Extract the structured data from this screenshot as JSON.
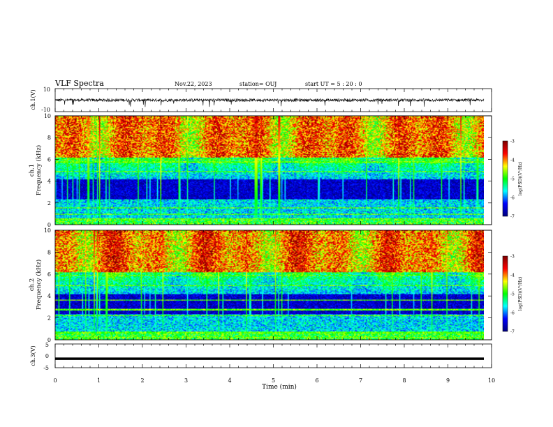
{
  "header": {
    "title": "VLF Spectra",
    "date": "Nov.22, 2023",
    "station": "station= OUJ",
    "start_ut": "start  UT =   5 : 20 : 0"
  },
  "chart_data": [
    {
      "type": "line",
      "panel": "ch1-waveform",
      "ylabel": "ch.1(V)",
      "ylim": [
        -10,
        10
      ],
      "yticks": [
        "10",
        "-10"
      ],
      "xlim": [
        0,
        10
      ],
      "series": [
        {
          "values": "noisy waveform centered near 0 V, amplitude approx 1-2 V with occasional spikes to -4 V"
        }
      ]
    },
    {
      "type": "heatmap",
      "panel": "ch1-spectrogram",
      "ylabel": "ch.1\nFrequency (kHz)",
      "ylabel_lines": [
        "ch.1",
        "Frequency (kHz)"
      ],
      "ylim": [
        0,
        10
      ],
      "yticks": [
        "0",
        "2",
        "4",
        "6",
        "8",
        "10"
      ],
      "xlim": [
        0,
        9.83
      ],
      "colorbar": {
        "label": "log(PSD)(V²/Hz)",
        "range": [
          -7,
          -3
        ],
        "ticks": [
          "-3",
          "-4",
          "-5",
          "-6",
          "-7"
        ]
      }
    },
    {
      "type": "heatmap",
      "panel": "ch2-spectrogram",
      "ylabel_lines": [
        "ch.2",
        "Frequency (kHz)"
      ],
      "ylim": [
        0,
        10
      ],
      "yticks": [
        "0",
        "2",
        "4",
        "6",
        "8",
        "10"
      ],
      "xlim": [
        0,
        9.83
      ],
      "colorbar": {
        "label": "log(PSD)(V²/Hz)",
        "range": [
          -7,
          -3
        ],
        "ticks": [
          "-3",
          "-4",
          "-5",
          "-6",
          "-7"
        ]
      }
    },
    {
      "type": "line",
      "panel": "ch3-waveform",
      "ylabel": "ch.3(V)",
      "ylim": [
        -5,
        5
      ],
      "yticks": [
        "5",
        "0",
        "-5"
      ],
      "xlim": [
        0,
        10
      ],
      "series": [
        {
          "values": "near-constant level at approx -1.2 V"
        }
      ]
    }
  ],
  "xaxis": {
    "label": "Time (min)",
    "ticks": [
      "0",
      "1",
      "2",
      "3",
      "4",
      "5",
      "6",
      "7",
      "8",
      "9",
      "10"
    ],
    "range": [
      0,
      10
    ]
  },
  "colors": {
    "colormap": [
      "#00007f",
      "#0000ff",
      "#00ffff",
      "#00ff00",
      "#ffff00",
      "#ff0000",
      "#7f0000"
    ]
  }
}
